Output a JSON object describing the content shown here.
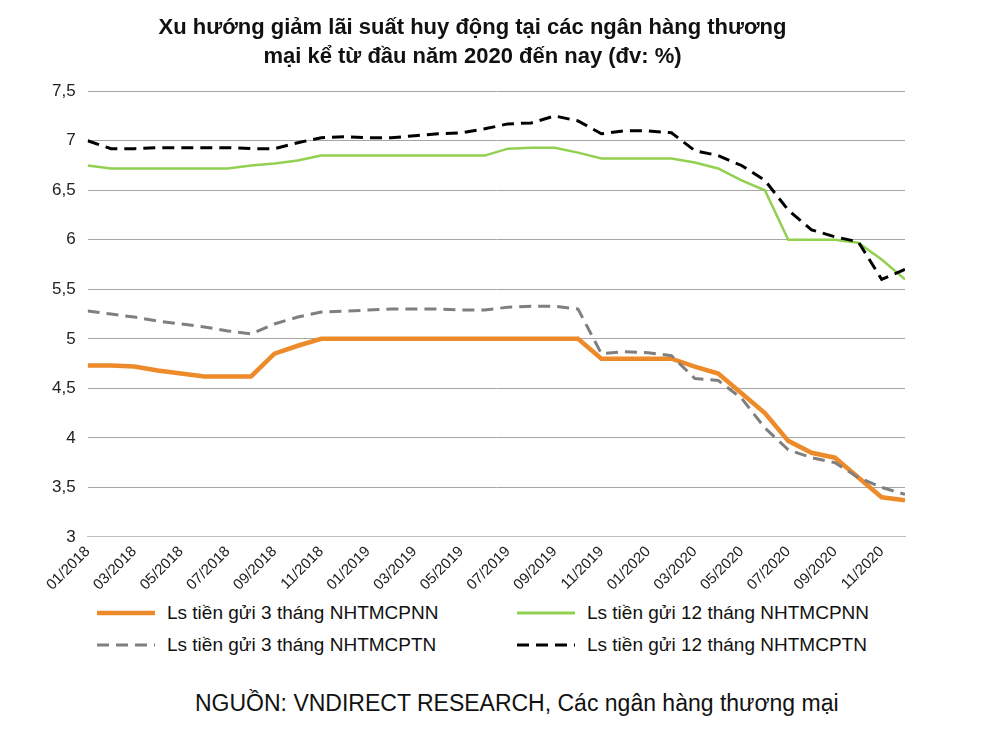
{
  "chart_data": {
    "type": "line",
    "title": [
      "Xu hướng giảm lãi suất huy động tại các ngân hàng thương",
      "mại kể từ đầu năm 2020 đến nay (đv: %)"
    ],
    "source": "NGUỒN: VNDIRECT RESEARCH, Các ngân hàng thương mại",
    "categories": [
      "01/2018",
      null,
      "03/2018",
      null,
      "05/2018",
      null,
      "07/2018",
      null,
      "09/2018",
      null,
      "11/2018",
      null,
      "01/2019",
      null,
      "03/2019",
      null,
      "05/2019",
      null,
      "07/2019",
      null,
      "09/2019",
      null,
      "11/2019",
      null,
      "01/2020",
      null,
      "03/2020",
      null,
      "05/2020",
      null,
      "07/2020",
      null,
      "09/2020",
      null,
      "11/2020",
      null
    ],
    "series": [
      {
        "name": "Ls tiền gửi 3 tháng NHTMCPNN",
        "color": "#ed8b2b",
        "line_style": "solid",
        "marker": "none",
        "values": [
          4.73,
          4.73,
          4.72,
          4.68,
          4.65,
          4.62,
          4.62,
          4.62,
          4.85,
          4.93,
          5.0,
          5.0,
          5.0,
          5.0,
          5.0,
          5.0,
          5.0,
          5.0,
          5.0,
          5.0,
          5.0,
          5.0,
          4.8,
          4.8,
          4.8,
          4.8,
          4.72,
          4.65,
          4.45,
          4.25,
          3.97,
          3.85,
          3.8,
          3.6,
          3.4,
          3.37
        ]
      },
      {
        "name": "Ls tiền gửi 12 tháng NHTMCPNN",
        "color": "#92d050",
        "line_style": "solid",
        "marker": "none",
        "values": [
          6.75,
          6.72,
          6.72,
          6.72,
          6.72,
          6.72,
          6.72,
          6.75,
          6.77,
          6.8,
          6.85,
          6.85,
          6.85,
          6.85,
          6.85,
          6.85,
          6.85,
          6.85,
          6.92,
          6.93,
          6.93,
          6.88,
          6.82,
          6.82,
          6.82,
          6.82,
          6.78,
          6.72,
          6.6,
          6.5,
          6.0,
          6.0,
          6.0,
          5.97,
          5.8,
          5.6
        ]
      },
      {
        "name": "Ls tiền gửi 3 tháng NHTMCPTN",
        "color": "#7f7f7f",
        "line_style": "dashed",
        "marker": "none",
        "values": [
          5.28,
          5.25,
          5.22,
          5.18,
          5.15,
          5.12,
          5.08,
          5.05,
          5.15,
          5.22,
          5.27,
          5.28,
          5.29,
          5.3,
          5.3,
          5.3,
          5.29,
          5.29,
          5.32,
          5.33,
          5.33,
          5.3,
          4.85,
          4.87,
          4.86,
          4.83,
          4.6,
          4.58,
          4.4,
          4.1,
          3.88,
          3.8,
          3.75,
          3.6,
          3.5,
          3.43
        ]
      },
      {
        "name": "Ls tiền gửi 12 tháng NHTMCPTN",
        "color": "#000000",
        "line_style": "dashed",
        "marker": "none",
        "values": [
          7.0,
          6.92,
          6.92,
          6.93,
          6.93,
          6.93,
          6.93,
          6.92,
          6.92,
          6.98,
          7.03,
          7.04,
          7.03,
          7.03,
          7.05,
          7.07,
          7.08,
          7.12,
          7.17,
          7.18,
          7.25,
          7.2,
          7.07,
          7.1,
          7.1,
          7.08,
          6.9,
          6.85,
          6.75,
          6.6,
          6.3,
          6.1,
          6.03,
          5.98,
          5.6,
          5.7
        ]
      }
    ],
    "ylim": [
      3,
      7.5
    ],
    "yticks": [
      3,
      {
        "value": 3.5,
        "label": "3,5"
      },
      4,
      {
        "value": 4.5,
        "label": "4,5"
      },
      5,
      {
        "value": 5.5,
        "label": "5,5"
      },
      6,
      {
        "value": 6.5,
        "label": "6,5"
      },
      7,
      {
        "value": 7.5,
        "label": "7,5"
      }
    ],
    "grid": true,
    "legend": "bottom"
  }
}
